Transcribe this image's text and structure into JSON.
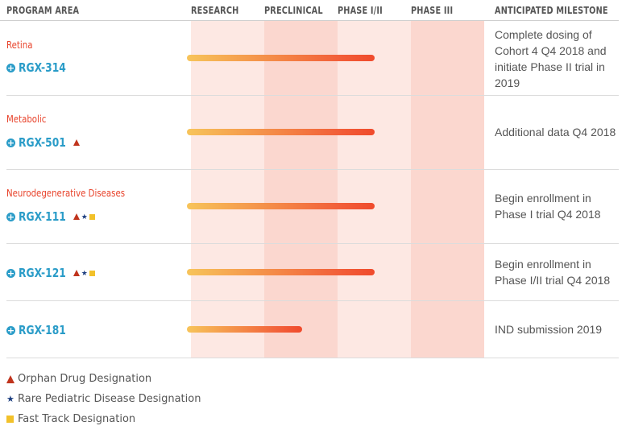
{
  "header": {
    "program_area": "PROGRAM AREA",
    "research": "RESEARCH",
    "preclinical": "PRECLINICAL",
    "phase12": "PHASE I/II",
    "phase3": "PHASE III",
    "milestone": "ANTICIPATED MILESTONE"
  },
  "rows": [
    {
      "area": "Retina",
      "program": "RGX-314",
      "designations": [],
      "stage_progress": "Phase I/II",
      "milestone": "Complete dosing of Cohort 4 Q4 2018 and initiate Phase II trial in 2019"
    },
    {
      "area": "Metabolic",
      "program": "RGX-501",
      "designations": [
        "orphan"
      ],
      "stage_progress": "Phase I/II",
      "milestone": "Additional data Q4 2018"
    },
    {
      "area": "Neurodegenerative Diseases",
      "program": "RGX-111",
      "designations": [
        "orphan",
        "rare-pediatric",
        "fast-track"
      ],
      "stage_progress": "Phase I/II",
      "milestone": "Begin enrollment in Phase I trial Q4 2018"
    },
    {
      "area": "",
      "program": "RGX-121",
      "designations": [
        "orphan",
        "rare-pediatric",
        "fast-track"
      ],
      "stage_progress": "Phase I/II",
      "milestone": "Begin enrollment in Phase I/II trial Q4 2018"
    },
    {
      "area": "",
      "program": "RGX-181",
      "designations": [],
      "stage_progress": "Preclinical",
      "milestone": "IND submission 2019"
    }
  ],
  "legend": {
    "orphan": "Orphan Drug Designation",
    "rare_pediatric": "Rare Pediatric Disease Designation",
    "fast_track": "Fast Track Designation"
  },
  "colors": {
    "area_label": "#e8432b",
    "program_label": "#2a9cc8",
    "stage_light": "#fde8e3",
    "stage_dark": "#fbd7cf",
    "bar_start": "#f7c45a",
    "bar_end": "#f04a2c",
    "orphan": "#c0341d",
    "rare_pediatric": "#1d3f80",
    "fast_track": "#f2c12a"
  }
}
